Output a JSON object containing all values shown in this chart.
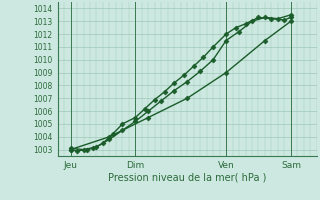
{
  "xlabel": "Pression niveau de la mer( hPa )",
  "bg_color": "#cce8e0",
  "plot_bg_color": "#cce8e0",
  "grid_color": "#a0c8b8",
  "line_color": "#1a5c2a",
  "dark_line_color": "#2d6b3c",
  "ylim": [
    1002.5,
    1014.5
  ],
  "xlim": [
    0,
    80
  ],
  "yticks": [
    1003,
    1004,
    1005,
    1006,
    1007,
    1008,
    1009,
    1010,
    1011,
    1012,
    1013,
    1014
  ],
  "xtick_positions": [
    4,
    24,
    52,
    72
  ],
  "xtick_labels": [
    "Jeu",
    "Dim",
    "Ven",
    "Sam"
  ],
  "vline_positions": [
    4,
    24,
    52,
    72
  ],
  "series": [
    {
      "x": [
        4,
        6,
        9,
        11,
        14,
        17,
        20,
        24,
        27,
        30,
        33,
        36,
        39,
        42,
        45,
        48,
        52,
        55,
        58,
        62,
        66,
        70,
        72
      ],
      "y": [
        1003.0,
        1002.9,
        1003.0,
        1003.1,
        1003.5,
        1004.2,
        1005.0,
        1005.5,
        1006.2,
        1006.9,
        1007.5,
        1008.2,
        1008.8,
        1009.5,
        1010.2,
        1011.0,
        1012.0,
        1012.5,
        1012.8,
        1013.3,
        1013.2,
        1013.1,
        1013.3
      ]
    },
    {
      "x": [
        4,
        8,
        12,
        16,
        20,
        24,
        28,
        32,
        36,
        40,
        44,
        48,
        52,
        56,
        60,
        64,
        68,
        72
      ],
      "y": [
        1003.1,
        1003.0,
        1003.2,
        1003.8,
        1004.5,
        1005.2,
        1006.0,
        1006.8,
        1007.6,
        1008.3,
        1009.1,
        1010.0,
        1011.5,
        1012.2,
        1013.0,
        1013.3,
        1013.2,
        1013.5
      ]
    },
    {
      "x": [
        4,
        16,
        28,
        40,
        52,
        64,
        72
      ],
      "y": [
        1003.0,
        1004.0,
        1005.5,
        1007.0,
        1009.0,
        1011.5,
        1013.0
      ]
    }
  ],
  "marker": "D",
  "marker_size": 2.5,
  "line_width": 1.0
}
